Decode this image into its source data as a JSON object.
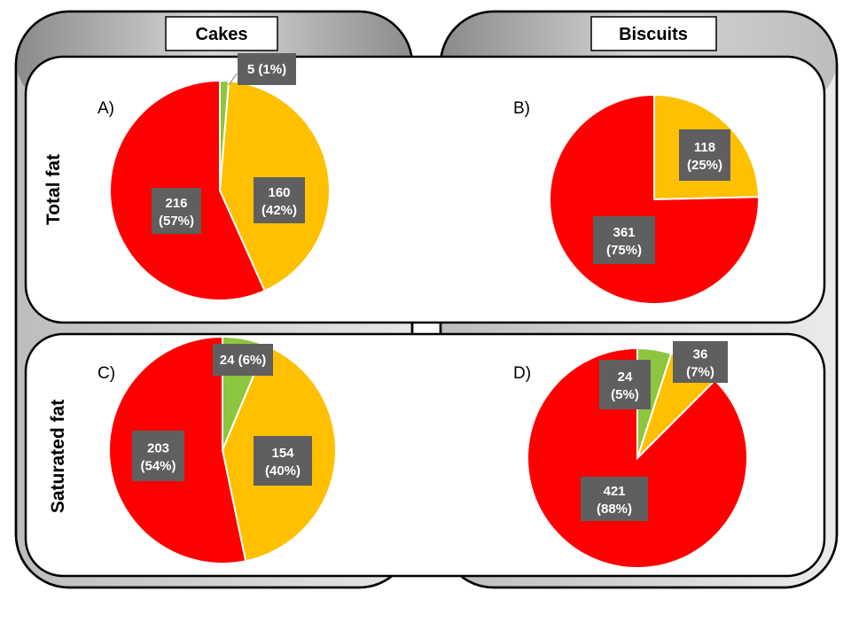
{
  "columns": [
    "Cakes",
    "Biscuits"
  ],
  "rows": [
    "Total fat",
    "Saturated fat"
  ],
  "colors": {
    "green": "#8cc63f",
    "amber": "#ffc000",
    "red": "#ff0000",
    "label_bg": "#5f5f5f"
  },
  "chart_data": [
    {
      "type": "pie",
      "panel": "A)",
      "column": "Cakes",
      "row": "Total fat",
      "slices": [
        {
          "value": 5,
          "label": "5 (1%)",
          "color": "green"
        },
        {
          "value": 160,
          "label": "160 (42%)",
          "color": "amber"
        },
        {
          "value": 216,
          "label": "216 (57%)",
          "color": "red"
        }
      ]
    },
    {
      "type": "pie",
      "panel": "B)",
      "column": "Biscuits",
      "row": "Total fat",
      "slices": [
        {
          "value": 118,
          "label": "118 (25%)",
          "color": "amber"
        },
        {
          "value": 361,
          "label": "361 (75%)",
          "color": "red"
        }
      ]
    },
    {
      "type": "pie",
      "panel": "C)",
      "column": "Cakes",
      "row": "Saturated fat",
      "slices": [
        {
          "value": 24,
          "label": "24 (6%)",
          "color": "green"
        },
        {
          "value": 154,
          "label": "154 (40%)",
          "color": "amber"
        },
        {
          "value": 203,
          "label": "203 (54%)",
          "color": "red"
        }
      ]
    },
    {
      "type": "pie",
      "panel": "D)",
      "column": "Biscuits",
      "row": "Saturated fat",
      "slices": [
        {
          "value": 24,
          "label": "24 (5%)",
          "color": "green"
        },
        {
          "value": 36,
          "label": "36 (7%)",
          "color": "amber"
        },
        {
          "value": 421,
          "label": "421 (88%)",
          "color": "red"
        }
      ]
    }
  ]
}
